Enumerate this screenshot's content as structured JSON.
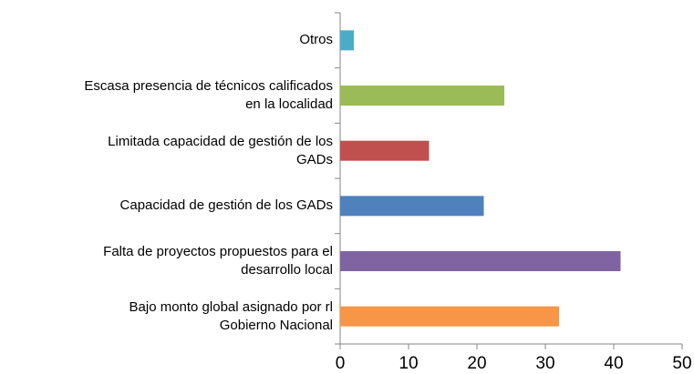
{
  "chart_data": {
    "type": "bar",
    "orientation": "horizontal",
    "categories": [
      "Otros",
      "Escasa presencia de técnicos calificados\nen la localidad",
      "Limitada capacidad de gestión de los\nGADs",
      "Capacidad de gestión de los GADs",
      "Falta de proyectos propuestos para el\ndesarrollo local",
      "Bajo monto global asignado por rl\nGobierno Nacional"
    ],
    "values": [
      2,
      24,
      13,
      21,
      41,
      32
    ],
    "colors": [
      "#4bacc6",
      "#9bbb59",
      "#c0504d",
      "#4f81bd",
      "#8064a2",
      "#f79646"
    ],
    "xlim": [
      0,
      50
    ],
    "xticks": [
      0,
      10,
      20,
      30,
      40,
      50
    ],
    "grid": false
  }
}
